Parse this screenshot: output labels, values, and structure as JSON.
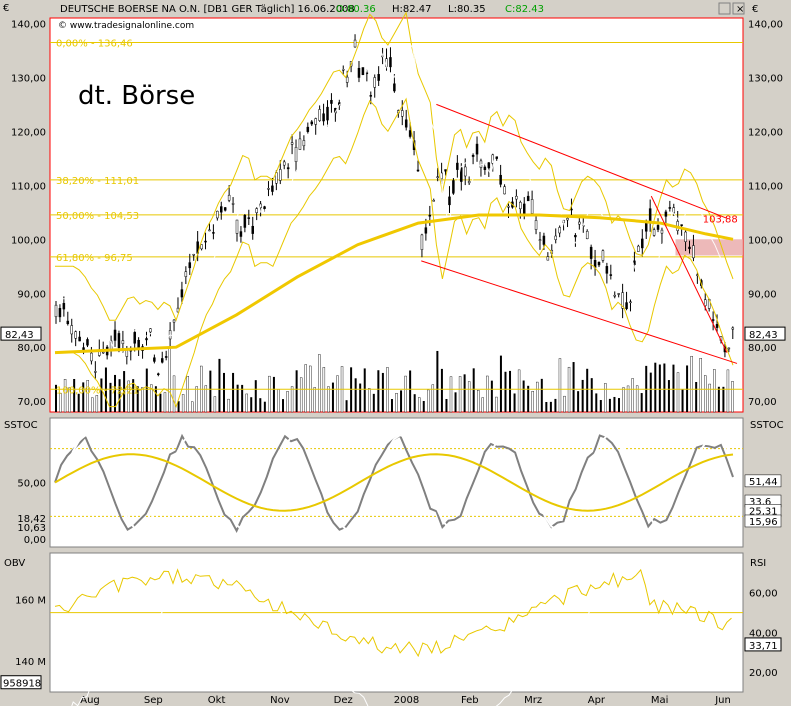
{
  "header": {
    "currency_left": "€",
    "currency_right": "€",
    "instrument": "DEUTSCHE BOERSE NA O.N. [DB1 GER  Täglich] 16.06.2008",
    "ohlc_open": "O:80.36",
    "ohlc_high": "H:82.47",
    "ohlc_low": "L:80.35",
    "ohlc_close": "C:82.43",
    "watermark": "© www.tradesignalonline.com",
    "big_label": "dt. Börse"
  },
  "colors": {
    "bg": "#ffffff",
    "frame": "#d4d0c8",
    "red": "#ff0000",
    "yellow": "#e8c800",
    "yellow_line": "#f0c800",
    "fib": "#e8c800",
    "stoch_grey": "#808080",
    "white": "#ffffff",
    "bar": "#000000"
  },
  "chart_data": [
    {
      "type": "candlestick",
      "panel": "price",
      "ylim": [
        68,
        141
      ],
      "y_ticks": [
        "140,00",
        "130,00",
        "120,00",
        "110,00",
        "100,00",
        "90,00",
        "80,00",
        "70,00"
      ],
      "last_price_label": "82,43",
      "x_labels": [
        "Aug",
        "Sep",
        "Okt",
        "Nov",
        "Dez",
        "2008",
        "Feb",
        "Mrz",
        "Apr",
        "Mai",
        "Jun"
      ],
      "fib_levels": [
        {
          "label": "0,00% - 136,46",
          "value": 136.46
        },
        {
          "label": "38,20% - 111,01",
          "value": 111.01
        },
        {
          "label": "50,00% - 104,53",
          "value": 104.53
        },
        {
          "label": "61,80% - 96,75",
          "value": 96.75
        },
        {
          "label": "100,00% - 72,21",
          "value": 72.21
        }
      ],
      "annotation": {
        "label": "103,88",
        "value": 103.88
      },
      "close_path": [
        {
          "x": 0,
          "y": 87
        },
        {
          "x": 3,
          "y": 86
        },
        {
          "x": 6,
          "y": 83
        },
        {
          "x": 9,
          "y": 81
        },
        {
          "x": 11,
          "y": 78
        },
        {
          "x": 13,
          "y": 76
        },
        {
          "x": 16,
          "y": 79
        },
        {
          "x": 19,
          "y": 82
        },
        {
          "x": 22,
          "y": 80
        },
        {
          "x": 25,
          "y": 81
        },
        {
          "x": 28,
          "y": 79
        },
        {
          "x": 31,
          "y": 81
        },
        {
          "x": 34,
          "y": 77
        },
        {
          "x": 37,
          "y": 82
        },
        {
          "x": 40,
          "y": 87
        },
        {
          "x": 43,
          "y": 93
        },
        {
          "x": 46,
          "y": 96
        },
        {
          "x": 49,
          "y": 100
        },
        {
          "x": 52,
          "y": 102
        },
        {
          "x": 55,
          "y": 106
        },
        {
          "x": 57,
          "y": 109
        },
        {
          "x": 60,
          "y": 103
        },
        {
          "x": 63,
          "y": 104
        },
        {
          "x": 66,
          "y": 103
        },
        {
          "x": 69,
          "y": 107
        },
        {
          "x": 72,
          "y": 111
        },
        {
          "x": 75,
          "y": 113
        },
        {
          "x": 78,
          "y": 116
        },
        {
          "x": 81,
          "y": 118
        },
        {
          "x": 84,
          "y": 121
        },
        {
          "x": 87,
          "y": 124
        },
        {
          "x": 90,
          "y": 122
        },
        {
          "x": 93,
          "y": 126
        },
        {
          "x": 96,
          "y": 131
        },
        {
          "x": 99,
          "y": 135
        },
        {
          "x": 101,
          "y": 130
        },
        {
          "x": 104,
          "y": 128
        },
        {
          "x": 107,
          "y": 131
        },
        {
          "x": 110,
          "y": 134
        },
        {
          "x": 113,
          "y": 124
        },
        {
          "x": 116,
          "y": 120
        },
        {
          "x": 119,
          "y": 116
        },
        {
          "x": 121,
          "y": 98
        },
        {
          "x": 124,
          "y": 106
        },
        {
          "x": 127,
          "y": 114
        },
        {
          "x": 130,
          "y": 109
        },
        {
          "x": 133,
          "y": 113
        },
        {
          "x": 136,
          "y": 110
        },
        {
          "x": 139,
          "y": 117
        },
        {
          "x": 142,
          "y": 113
        },
        {
          "x": 145,
          "y": 116
        },
        {
          "x": 148,
          "y": 110
        },
        {
          "x": 151,
          "y": 107
        },
        {
          "x": 154,
          "y": 105
        },
        {
          "x": 157,
          "y": 108
        },
        {
          "x": 160,
          "y": 101
        },
        {
          "x": 163,
          "y": 96
        },
        {
          "x": 166,
          "y": 100
        },
        {
          "x": 169,
          "y": 104
        },
        {
          "x": 172,
          "y": 103
        },
        {
          "x": 175,
          "y": 101
        },
        {
          "x": 178,
          "y": 95
        },
        {
          "x": 181,
          "y": 97
        },
        {
          "x": 184,
          "y": 92
        },
        {
          "x": 187,
          "y": 88
        },
        {
          "x": 190,
          "y": 91
        },
        {
          "x": 193,
          "y": 98
        },
        {
          "x": 196,
          "y": 103
        },
        {
          "x": 199,
          "y": 101
        },
        {
          "x": 202,
          "y": 105
        },
        {
          "x": 205,
          "y": 104
        },
        {
          "x": 208,
          "y": 99
        },
        {
          "x": 211,
          "y": 96
        },
        {
          "x": 214,
          "y": 91
        },
        {
          "x": 217,
          "y": 86
        },
        {
          "x": 220,
          "y": 82
        },
        {
          "x": 222,
          "y": 80
        },
        {
          "x": 224,
          "y": 82.4
        }
      ],
      "ma_200": [
        {
          "x": 0,
          "y": 79
        },
        {
          "x": 20,
          "y": 79.5
        },
        {
          "x": 40,
          "y": 80
        },
        {
          "x": 60,
          "y": 86
        },
        {
          "x": 80,
          "y": 93
        },
        {
          "x": 100,
          "y": 99
        },
        {
          "x": 120,
          "y": 103
        },
        {
          "x": 140,
          "y": 104.5
        },
        {
          "x": 160,
          "y": 104.5
        },
        {
          "x": 180,
          "y": 104
        },
        {
          "x": 200,
          "y": 103
        },
        {
          "x": 215,
          "y": 101
        },
        {
          "x": 224,
          "y": 100
        }
      ],
      "volume": [
        4,
        3,
        5,
        2,
        6,
        3,
        4,
        5,
        3,
        2,
        4,
        6,
        3,
        5,
        4,
        3,
        7,
        4,
        3,
        5,
        6,
        4,
        3,
        5,
        4,
        6,
        8,
        5,
        4,
        3,
        6,
        5,
        4,
        7,
        5,
        3,
        4,
        6,
        5,
        4,
        9,
        5,
        6,
        4,
        8,
        5,
        7,
        6,
        4,
        5,
        3,
        6,
        5,
        4,
        7,
        5,
        6,
        4,
        5,
        3,
        6,
        4,
        7,
        5,
        8,
        6,
        5,
        4,
        6,
        7,
        5,
        4,
        6,
        5,
        7,
        9
      ]
    },
    {
      "type": "line",
      "panel": "stochastic",
      "title": "SSTOC",
      "ylim": [
        0,
        100
      ],
      "y_ticks_left": [
        "50,00",
        "18,42",
        "10,63",
        "0,00"
      ],
      "values_right": [
        "51,44",
        "33,6",
        "25,31",
        "15,96"
      ]
    },
    {
      "type": "line",
      "panel": "obv_rsi",
      "title_left": "OBV",
      "title_right": "RSI",
      "y_ticks_left": [
        "160 M",
        "140 M"
      ],
      "obv_last": "958918",
      "y_ticks_right": [
        "60,00",
        "40,00",
        "20,00"
      ],
      "rsi_last": "33,71"
    }
  ]
}
